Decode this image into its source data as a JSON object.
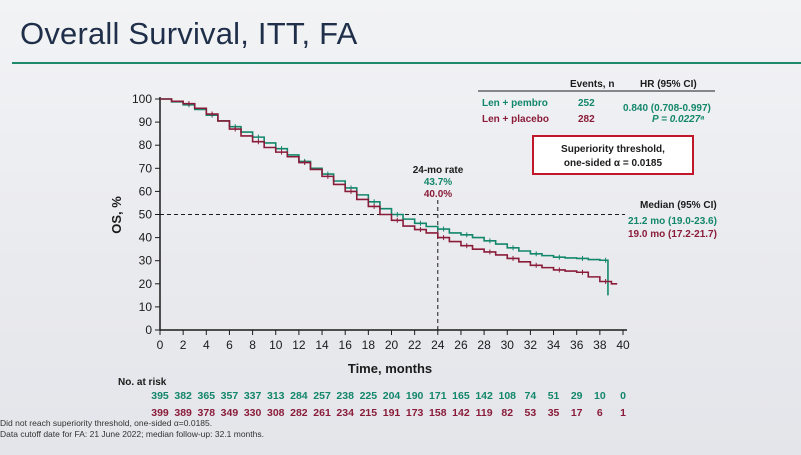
{
  "slide": {
    "title": "Overall Survival, ITT, FA"
  },
  "chart_data": {
    "type": "line",
    "xlabel": "Time, months",
    "ylabel": "OS, %",
    "xlim": [
      0,
      40
    ],
    "ylim": [
      0,
      100
    ],
    "xticks": [
      0,
      2,
      4,
      6,
      8,
      10,
      12,
      14,
      16,
      18,
      20,
      22,
      24,
      26,
      28,
      30,
      32,
      34,
      36,
      38,
      40
    ],
    "yticks": [
      0,
      10,
      20,
      30,
      40,
      50,
      60,
      70,
      80,
      90,
      100
    ],
    "colors": {
      "pembro": "#13876b",
      "placebo": "#8a1c3a"
    },
    "series": [
      {
        "name": "Len + pembro",
        "x": [
          0,
          1,
          2,
          3,
          4,
          5,
          6,
          7,
          8,
          9,
          10,
          11,
          12,
          13,
          14,
          15,
          16,
          17,
          18,
          19,
          20,
          21,
          22,
          23,
          24,
          25,
          26,
          27,
          28,
          29,
          30,
          31,
          32,
          33,
          34,
          35,
          36,
          37,
          38,
          38.5,
          38.7
        ],
        "y": [
          100,
          98.8,
          97.5,
          95.5,
          93,
          90.5,
          88,
          85.7,
          83.5,
          81,
          78.5,
          75.8,
          73,
          70,
          67.5,
          64.5,
          61.5,
          58.5,
          55.5,
          52.5,
          50,
          48,
          46.2,
          44.8,
          43.7,
          42,
          41.2,
          40,
          38.6,
          37.2,
          35.6,
          34.2,
          33,
          32.2,
          31.5,
          31.2,
          31,
          30.5,
          30.2,
          30.2,
          15
        ]
      },
      {
        "name": "Len + placebo",
        "x": [
          0,
          1,
          2,
          3,
          4,
          5,
          6,
          7,
          8,
          9,
          10,
          11,
          12,
          13,
          14,
          15,
          16,
          17,
          18,
          19,
          20,
          21,
          22,
          23,
          24,
          25,
          26,
          27,
          28,
          29,
          30,
          31,
          32,
          33,
          34,
          35,
          36,
          37,
          38,
          39,
          39.5
        ],
        "y": [
          100,
          99,
          98,
          96,
          93.5,
          90.5,
          87,
          84,
          81.5,
          79,
          77,
          75,
          72.5,
          69.5,
          66.5,
          63,
          60,
          56.5,
          53.5,
          50,
          47.5,
          45,
          43.5,
          42,
          40,
          38.3,
          36.5,
          35,
          33.8,
          32.5,
          31,
          29.5,
          28,
          27,
          26,
          25.5,
          25,
          23,
          21,
          20,
          20
        ]
      }
    ],
    "annotations": {
      "rate_24mo_title": "24-mo rate",
      "rate_24mo_pembro": "43.7%",
      "rate_24mo_placebo": "40.0%",
      "median_title": "Median (95% CI)",
      "median_pembro": "21.2 mo (19.0-23.6)",
      "median_placebo": "19.0 mo (17.2-21.7)",
      "reference_y": 50,
      "reference_x": 24
    },
    "legend_table": {
      "header_events": "Events, n",
      "header_hr": "HR (95% CI)",
      "rows": [
        {
          "label": "Len + pembro",
          "events": "252"
        },
        {
          "label": "Len + placebo",
          "events": "282"
        }
      ],
      "hr_value": "0.840 (0.708-0.997)",
      "p_value": "P = 0.0227ᵃ"
    },
    "threshold_box": {
      "line1": "Superiority threshold,",
      "line2": "one-sided α = 0.0185"
    },
    "at_risk": {
      "title": "No. at risk",
      "pembro": [
        "395",
        "382",
        "365",
        "357",
        "337",
        "313",
        "284",
        "257",
        "238",
        "225",
        "204",
        "190",
        "171",
        "165",
        "142",
        "108",
        "74",
        "51",
        "29",
        "10",
        "0"
      ],
      "placebo": [
        "399",
        "389",
        "378",
        "349",
        "330",
        "308",
        "282",
        "261",
        "234",
        "215",
        "191",
        "173",
        "158",
        "142",
        "119",
        "82",
        "53",
        "35",
        "17",
        "6",
        "1"
      ]
    }
  },
  "footnotes": {
    "line1": "Did not reach superiority threshold, one-sided α=0.0185.",
    "line2": "Data cutoff date for FA: 21 June 2022; median follow-up: 32.1 months."
  }
}
